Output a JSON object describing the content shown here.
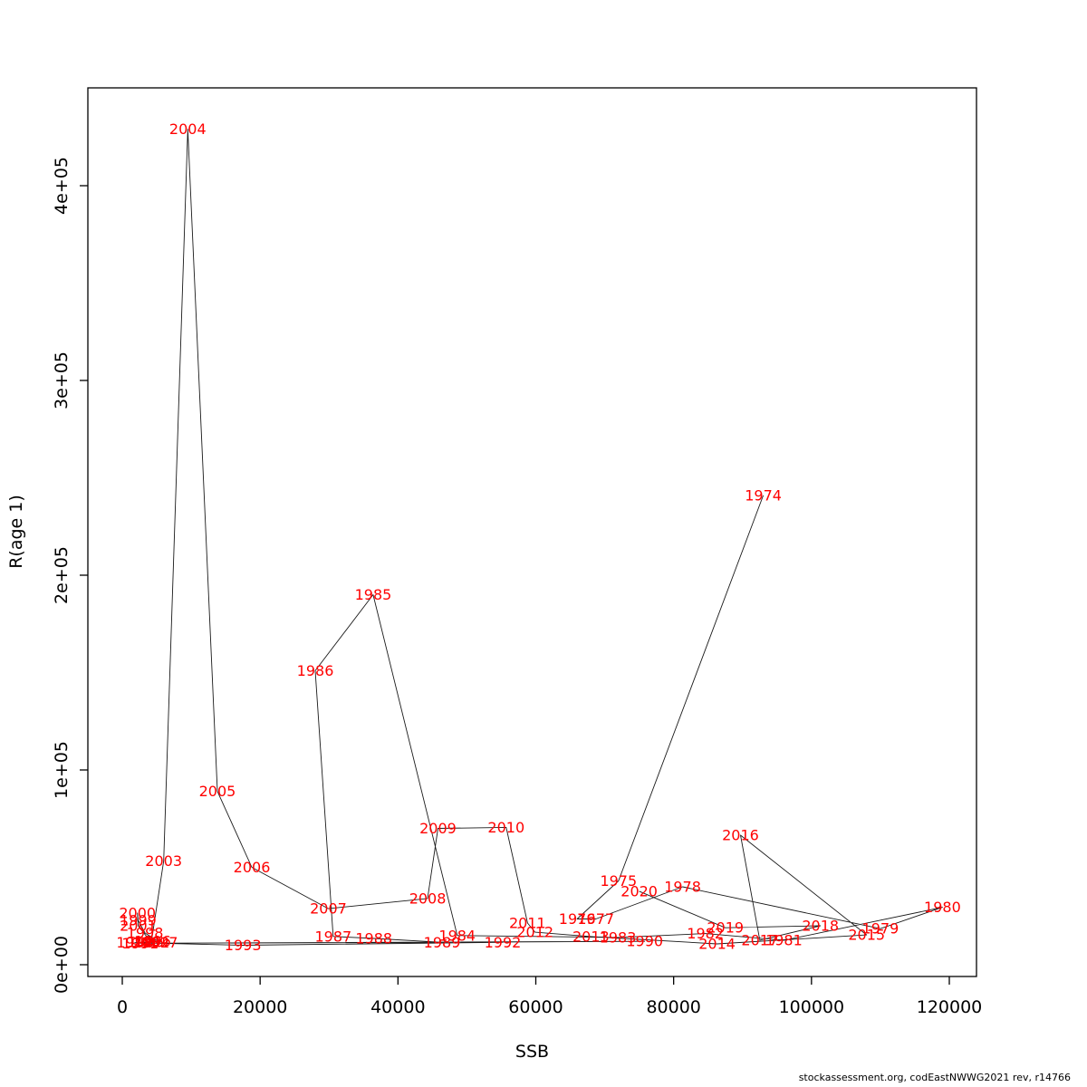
{
  "footer": "stockassessment.org, codEastNWWG2021 rev, r14766",
  "chart_data": {
    "type": "scatter",
    "title": "",
    "xlabel": "SSB",
    "ylabel": "R(age 1)",
    "xlim": [
      -5000,
      124000
    ],
    "ylim": [
      -6000,
      450000
    ],
    "grid": false,
    "legend": "none",
    "label_color": "#ff0000",
    "line_color": "#1a1a1a",
    "x_ticks": [
      0,
      20000,
      40000,
      60000,
      80000,
      100000,
      120000
    ],
    "x_tick_labels": [
      "0",
      "20000",
      "40000",
      "60000",
      "80000",
      "100000",
      "120000"
    ],
    "y_ticks": [
      0,
      100000,
      200000,
      300000,
      400000
    ],
    "y_tick_labels": [
      "0e+00",
      "1e+05",
      "2e+05",
      "3e+05",
      "4e+05"
    ],
    "series_note": "points labeled by year, connected in chronological order",
    "points": [
      {
        "year": "1974",
        "ssb": 93000,
        "r": 241000
      },
      {
        "year": "1975",
        "ssb": 72000,
        "r": 43000
      },
      {
        "year": "1976",
        "ssb": 66000,
        "r": 23500
      },
      {
        "year": "1977",
        "ssb": 68700,
        "r": 23500
      },
      {
        "year": "1978",
        "ssb": 81300,
        "r": 40000
      },
      {
        "year": "1979",
        "ssb": 110000,
        "r": 18500
      },
      {
        "year": "1980",
        "ssb": 119000,
        "r": 29500
      },
      {
        "year": "1981",
        "ssb": 96000,
        "r": 12500
      },
      {
        "year": "1982",
        "ssb": 84600,
        "r": 16000
      },
      {
        "year": "1983",
        "ssb": 71900,
        "r": 14000
      },
      {
        "year": "1984",
        "ssb": 48600,
        "r": 15000
      },
      {
        "year": "1985",
        "ssb": 36400,
        "r": 190000
      },
      {
        "year": "1986",
        "ssb": 28000,
        "r": 151000
      },
      {
        "year": "1987",
        "ssb": 30600,
        "r": 14500
      },
      {
        "year": "1988",
        "ssb": 36500,
        "r": 13500
      },
      {
        "year": "1989",
        "ssb": 46400,
        "r": 11500
      },
      {
        "year": "1990",
        "ssb": 75800,
        "r": 12000
      },
      {
        "year": "1991",
        "ssb": 2600,
        "r": 11000
      },
      {
        "year": "1992",
        "ssb": 55200,
        "r": 11500
      },
      {
        "year": "1993",
        "ssb": 17500,
        "r": 10000
      },
      {
        "year": "1994",
        "ssb": 1800,
        "r": 11300
      },
      {
        "year": "1995",
        "ssb": 3400,
        "r": 11600
      },
      {
        "year": "1996",
        "ssb": 4400,
        "r": 12000
      },
      {
        "year": "1997",
        "ssb": 5400,
        "r": 11500
      },
      {
        "year": "1998",
        "ssb": 3300,
        "r": 16300
      },
      {
        "year": "1999",
        "ssb": 2300,
        "r": 22800
      },
      {
        "year": "2000",
        "ssb": 2200,
        "r": 26500
      },
      {
        "year": "2001",
        "ssb": 2300,
        "r": 20000
      },
      {
        "year": "2002",
        "ssb": 4200,
        "r": 11500
      },
      {
        "year": "2003",
        "ssb": 6000,
        "r": 53300
      },
      {
        "year": "2004",
        "ssb": 9500,
        "r": 429000
      },
      {
        "year": "2005",
        "ssb": 13800,
        "r": 89000
      },
      {
        "year": "2006",
        "ssb": 18800,
        "r": 50000
      },
      {
        "year": "2007",
        "ssb": 29900,
        "r": 28800
      },
      {
        "year": "2008",
        "ssb": 44300,
        "r": 34000
      },
      {
        "year": "2009",
        "ssb": 45800,
        "r": 70000
      },
      {
        "year": "2010",
        "ssb": 55700,
        "r": 70500
      },
      {
        "year": "2011",
        "ssb": 58800,
        "r": 21400
      },
      {
        "year": "2012",
        "ssb": 59900,
        "r": 16700
      },
      {
        "year": "2013",
        "ssb": 68000,
        "r": 14400
      },
      {
        "year": "2014",
        "ssb": 86300,
        "r": 10700
      },
      {
        "year": "2015",
        "ssb": 108000,
        "r": 15300
      },
      {
        "year": "2016",
        "ssb": 89700,
        "r": 66500
      },
      {
        "year": "2017",
        "ssb": 92500,
        "r": 12600
      },
      {
        "year": "2018",
        "ssb": 101300,
        "r": 20000
      },
      {
        "year": "2019",
        "ssb": 87500,
        "r": 19000
      },
      {
        "year": "2020",
        "ssb": 75000,
        "r": 37700
      }
    ]
  }
}
